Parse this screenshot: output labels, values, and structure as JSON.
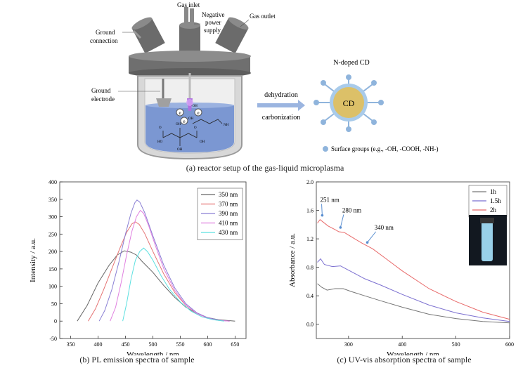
{
  "figure_a": {
    "labels": {
      "gas_inlet": "Gas inlet",
      "neg_power_1": "Negative",
      "neg_power_2": "power",
      "neg_power_3": "supply",
      "gas_outlet": "Gas outlet",
      "ground_conn_1": "Ground",
      "ground_conn_2": "connection",
      "ground_elec_1": "Ground",
      "ground_elec_2": "electrode",
      "arrow_top": "dehydration",
      "arrow_bottom": "carbonization",
      "cd_title": "N-doped CD",
      "cd_core": "CD",
      "surface_groups": "Surface groups (e.g.,  -OH, -COOH, -NH-)",
      "nh2": "NH",
      "mol_oh1": "OH",
      "mol_oh2": "OH",
      "mol_ho": "HO",
      "mol_o1": "O",
      "mol_o2": "O",
      "mol_oh3": "OH",
      "mol_oh4": "OH",
      "e_symbol": "e",
      "oh_symbol": "·OH"
    },
    "caption": "(a) reactor setup of the gas-liquid microplasma"
  },
  "chart_data": [
    {
      "type": "line",
      "xlabel": "Wavelength / nm",
      "ylabel": "Intensity / a.u.",
      "xlim": [
        330,
        670
      ],
      "ylim": [
        -50,
        400
      ],
      "xticks": [
        350,
        400,
        450,
        500,
        550,
        600,
        650
      ],
      "yticks": [
        -50,
        0,
        50,
        100,
        150,
        200,
        250,
        300,
        350,
        400
      ],
      "legend_position": "top-right",
      "series": [
        {
          "name": "350 nm",
          "color": "#666666",
          "points": [
            [
              362,
              0
            ],
            [
              380,
              45
            ],
            [
              400,
              110
            ],
            [
              420,
              160
            ],
            [
              435,
              190
            ],
            [
              448,
              202
            ],
            [
              460,
              198
            ],
            [
              470,
              190
            ],
            [
              480,
              172
            ],
            [
              500,
              140
            ],
            [
              520,
              102
            ],
            [
              540,
              68
            ],
            [
              560,
              40
            ],
            [
              580,
              22
            ],
            [
              600,
              10
            ],
            [
              620,
              4
            ],
            [
              650,
              0
            ]
          ]
        },
        {
          "name": "370 nm",
          "color": "#e57373",
          "points": [
            [
              382,
              0
            ],
            [
              395,
              35
            ],
            [
              410,
              90
            ],
            [
              425,
              150
            ],
            [
              440,
              210
            ],
            [
              452,
              255
            ],
            [
              462,
              280
            ],
            [
              468,
              285
            ],
            [
              475,
              278
            ],
            [
              485,
              252
            ],
            [
              500,
              200
            ],
            [
              520,
              135
            ],
            [
              540,
              82
            ],
            [
              560,
              45
            ],
            [
              580,
              22
            ],
            [
              600,
              9
            ],
            [
              620,
              3
            ],
            [
              640,
              0
            ]
          ]
        },
        {
          "name": "390 nm",
          "color": "#8a7fd4",
          "points": [
            [
              402,
              0
            ],
            [
              412,
              30
            ],
            [
              425,
              90
            ],
            [
              438,
              170
            ],
            [
              450,
              250
            ],
            [
              460,
              310
            ],
            [
              467,
              340
            ],
            [
              471,
              348
            ],
            [
              476,
              342
            ],
            [
              485,
              312
            ],
            [
              500,
              245
            ],
            [
              520,
              160
            ],
            [
              540,
              95
            ],
            [
              560,
              50
            ],
            [
              580,
              24
            ],
            [
              600,
              10
            ],
            [
              620,
              3
            ],
            [
              640,
              0
            ]
          ]
        },
        {
          "name": "410 nm",
          "color": "#e080e0",
          "points": [
            [
              422,
              0
            ],
            [
              432,
              40
            ],
            [
              442,
              110
            ],
            [
              452,
              190
            ],
            [
              462,
              260
            ],
            [
              470,
              300
            ],
            [
              477,
              318
            ],
            [
              483,
              310
            ],
            [
              492,
              275
            ],
            [
              505,
              215
            ],
            [
              520,
              150
            ],
            [
              540,
              88
            ],
            [
              560,
              46
            ],
            [
              580,
              22
            ],
            [
              600,
              8
            ],
            [
              620,
              2
            ],
            [
              640,
              0
            ]
          ]
        },
        {
          "name": "430 nm",
          "color": "#5ce0e0",
          "points": [
            [
              445,
              0
            ],
            [
              452,
              50
            ],
            [
              460,
              120
            ],
            [
              468,
              175
            ],
            [
              476,
              200
            ],
            [
              483,
              210
            ],
            [
              490,
              200
            ],
            [
              500,
              175
            ],
            [
              515,
              130
            ],
            [
              530,
              92
            ],
            [
              550,
              55
            ],
            [
              570,
              28
            ],
            [
              590,
              12
            ],
            [
              610,
              4
            ],
            [
              630,
              0
            ]
          ]
        }
      ],
      "caption": "(b) PL emission spectra of sample"
    },
    {
      "type": "line",
      "xlabel": "Wavelength / nm",
      "ylabel": "Absorbance / a.u.",
      "xlim": [
        240,
        600
      ],
      "ylim": [
        -0.2,
        2.0
      ],
      "xticks": [
        300,
        400,
        500,
        600
      ],
      "yticks": [
        0.0,
        0.4,
        0.8,
        1.2,
        1.6,
        2.0
      ],
      "legend_position": "top-right",
      "series": [
        {
          "name": "1h",
          "color": "#777777",
          "points": [
            [
              242,
              0.57
            ],
            [
              250,
              0.52
            ],
            [
              260,
              0.48
            ],
            [
              275,
              0.5
            ],
            [
              290,
              0.5
            ],
            [
              305,
              0.46
            ],
            [
              330,
              0.4
            ],
            [
              360,
              0.33
            ],
            [
              400,
              0.24
            ],
            [
              450,
              0.14
            ],
            [
              500,
              0.08
            ],
            [
              550,
              0.04
            ],
            [
              600,
              0.02
            ]
          ]
        },
        {
          "name": "1.5h",
          "color": "#7b6fd0",
          "points": [
            [
              242,
              0.87
            ],
            [
              248,
              0.92
            ],
            [
              255,
              0.84
            ],
            [
              270,
              0.81
            ],
            [
              285,
              0.82
            ],
            [
              300,
              0.76
            ],
            [
              330,
              0.64
            ],
            [
              360,
              0.55
            ],
            [
              400,
              0.42
            ],
            [
              450,
              0.27
            ],
            [
              500,
              0.16
            ],
            [
              550,
              0.09
            ],
            [
              600,
              0.04
            ]
          ]
        },
        {
          "name": "2h",
          "color": "#e86a6a",
          "points": [
            [
              242,
              1.42
            ],
            [
              247,
              1.47
            ],
            [
              252,
              1.44
            ],
            [
              262,
              1.38
            ],
            [
              275,
              1.33
            ],
            [
              282,
              1.3
            ],
            [
              292,
              1.29
            ],
            [
              305,
              1.23
            ],
            [
              325,
              1.14
            ],
            [
              345,
              1.06
            ],
            [
              370,
              0.92
            ],
            [
              400,
              0.75
            ],
            [
              450,
              0.5
            ],
            [
              500,
              0.32
            ],
            [
              550,
              0.17
            ],
            [
              600,
              0.07
            ]
          ]
        }
      ],
      "annotations": [
        "251 nm",
        "280 nm",
        "340 nm"
      ],
      "caption": "(c) UV-vis absorption spectra of sample"
    }
  ]
}
